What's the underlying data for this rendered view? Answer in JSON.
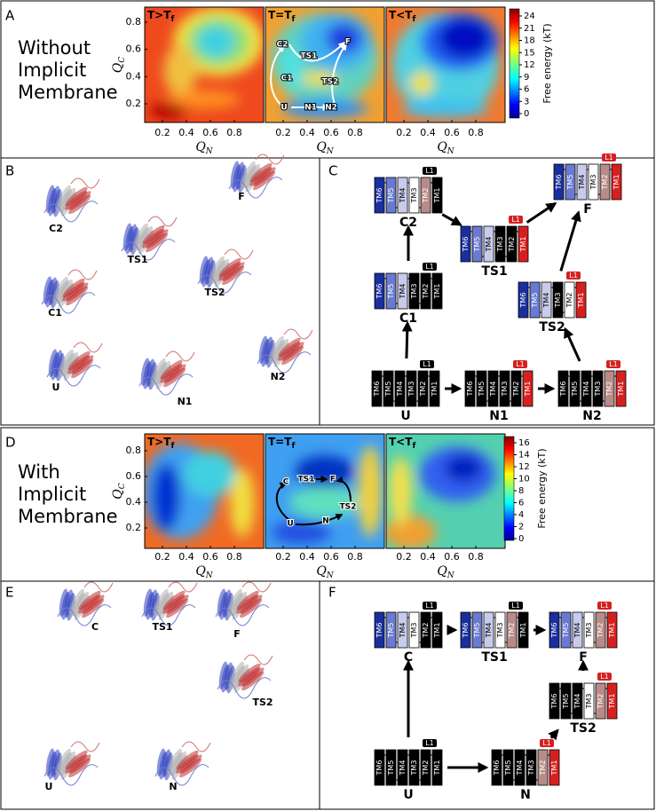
{
  "panel_a": {
    "label": "A",
    "title_lines": [
      "Without",
      "Implicit",
      "Membrane"
    ],
    "panels": [
      {
        "title": "T>T",
        "sub": "f"
      },
      {
        "title": "T=T",
        "sub": "f"
      },
      {
        "title": "T<T",
        "sub": "f"
      }
    ],
    "xlabel": "Q",
    "xlabel_sub": "N",
    "ylabel": "Q",
    "ylabel_sub": "C",
    "xticks": [
      0.2,
      0.4,
      0.6,
      0.8
    ],
    "yticks": [
      0.2,
      0.4,
      0.6,
      0.8
    ],
    "colorbar": {
      "label": "Free energy (kT)",
      "ticks": [
        0,
        3,
        6,
        9,
        12,
        15,
        18,
        21,
        24
      ]
    },
    "annotations": [
      "C2",
      "TS1",
      "F",
      "C1",
      "TS2",
      "U",
      "N1",
      "N2"
    ]
  },
  "panel_b": {
    "label": "B",
    "structures": [
      "C2",
      "F",
      "TS1",
      "TS2",
      "C1",
      "U",
      "N1",
      "N2"
    ]
  },
  "panel_c": {
    "label": "C",
    "helices": [
      "TM6",
      "TM5",
      "TM4",
      "TM3",
      "TM2",
      "TM1"
    ],
    "loop": "L1",
    "states": [
      "C2",
      "F",
      "TS1",
      "TS2",
      "C1",
      "U",
      "N1",
      "N2"
    ]
  },
  "panel_d": {
    "label": "D",
    "title_lines": [
      "With",
      "Implicit",
      "Membrane"
    ],
    "panels": [
      {
        "title": "T>T",
        "sub": "f"
      },
      {
        "title": "T=T",
        "sub": "f"
      },
      {
        "title": "T<T",
        "sub": "f"
      }
    ],
    "xlabel": "Q",
    "xlabel_sub": "N",
    "ylabel": "Q",
    "ylabel_sub": "C",
    "xticks": [
      0.2,
      0.4,
      0.6,
      0.8
    ],
    "yticks": [
      0.2,
      0.4,
      0.6,
      0.8
    ],
    "colorbar": {
      "label": "Free energy (kT)",
      "ticks": [
        0,
        2,
        4,
        6,
        8,
        10,
        12,
        14,
        16
      ]
    },
    "annotations": [
      "C",
      "TS1",
      "F",
      "TS2",
      "U",
      "N"
    ]
  },
  "panel_e": {
    "label": "E",
    "structures": [
      "C",
      "TS1",
      "F",
      "TS2",
      "U",
      "N"
    ]
  },
  "panel_f": {
    "label": "F",
    "helices": [
      "TM6",
      "TM5",
      "TM4",
      "TM3",
      "TM2",
      "TM1"
    ],
    "loop": "L1",
    "states": [
      "C",
      "TS1",
      "F",
      "TS2",
      "U",
      "N"
    ]
  }
}
